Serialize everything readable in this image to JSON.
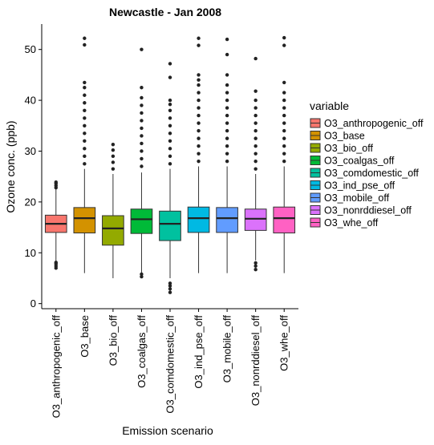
{
  "chart_data": {
    "type": "boxplot",
    "title": "Newcastle  - Jan 2008",
    "xlabel": "Emission scenario",
    "ylabel": "Ozone conc. (ppb)",
    "ylim": [
      -1,
      55
    ],
    "yticks": [
      0,
      10,
      20,
      30,
      40,
      50
    ],
    "legend": {
      "title": "variable",
      "position": "right"
    },
    "grid": false,
    "series": [
      {
        "name": "O3_anthropogenic_off",
        "color": "#F8766D",
        "stats": {
          "whislo": 8.3,
          "q1": 14.0,
          "med": 15.7,
          "q3": 17.4,
          "whishi": 22.5
        },
        "outliers": [
          7.0,
          7.4,
          7.8,
          8.1,
          22.8,
          23.2,
          23.6,
          23.9
        ]
      },
      {
        "name": "O3_base",
        "color": "#D39200",
        "stats": {
          "whislo": 6.0,
          "q1": 13.9,
          "med": 16.8,
          "q3": 18.9,
          "whishi": 26.5
        },
        "outliers": [
          27.5,
          29,
          30.5,
          32,
          33.5,
          35,
          36.5,
          38,
          39.5,
          41,
          42.5,
          43.5,
          50.9,
          52.2
        ]
      },
      {
        "name": "O3_bio_off",
        "color": "#93AA00",
        "stats": {
          "whislo": 5.0,
          "q1": 11.5,
          "med": 14.8,
          "q3": 17.3,
          "whishi": 25.5
        },
        "outliers": [
          26.5,
          27.8,
          29,
          30.2,
          31.3
        ]
      },
      {
        "name": "O3_coalgas_off",
        "color": "#00BA38",
        "stats": {
          "whislo": 6.0,
          "q1": 13.8,
          "med": 16.6,
          "q3": 18.6,
          "whishi": 25.8
        },
        "outliers": [
          5.3,
          5.8,
          27,
          28.5,
          30,
          31.5,
          33,
          34.5,
          36,
          37.5,
          39,
          40.5,
          42.5,
          50
        ]
      },
      {
        "name": "O3_comdomestic_off",
        "color": "#00C19F",
        "stats": {
          "whislo": 5.0,
          "q1": 12.4,
          "med": 15.7,
          "q3": 18.2,
          "whishi": 26.5
        },
        "outliers": [
          2.2,
          2.9,
          3.5,
          4.0,
          27.5,
          29,
          30.5,
          32,
          33.5,
          35,
          36.5,
          38,
          39.2,
          40,
          44.5,
          47.2
        ]
      },
      {
        "name": "O3_ind_pse_off",
        "color": "#00B9E3",
        "stats": {
          "whislo": 6.0,
          "q1": 14.0,
          "med": 16.8,
          "q3": 19.0,
          "whishi": 27.0
        },
        "outliers": [
          28,
          29.5,
          31,
          32.5,
          34,
          35.5,
          37,
          38.5,
          40,
          41.5,
          43,
          44,
          45,
          50.8,
          52.2
        ]
      },
      {
        "name": "O3_mobile_off",
        "color": "#619CFF",
        "stats": {
          "whislo": 6.0,
          "q1": 14.0,
          "med": 16.8,
          "q3": 18.9,
          "whishi": 27.0
        },
        "outliers": [
          28,
          29.5,
          31,
          32.5,
          34,
          35.5,
          37,
          38.5,
          40,
          41.5,
          43,
          45,
          49,
          52
        ]
      },
      {
        "name": "O3_nonrddiesel_off",
        "color": "#DB72FB",
        "stats": {
          "whislo": 8.5,
          "q1": 14.4,
          "med": 16.7,
          "q3": 18.6,
          "whishi": 25.5
        },
        "outliers": [
          6.7,
          7.4,
          8.0,
          26.5,
          28,
          29.5,
          31,
          32.5,
          34,
          35.5,
          37,
          38.5,
          40,
          41.8,
          48.2
        ]
      },
      {
        "name": "O3_whe_off",
        "color": "#FF61C3",
        "stats": {
          "whislo": 6.0,
          "q1": 13.9,
          "med": 16.8,
          "q3": 19.0,
          "whishi": 27.0
        },
        "outliers": [
          28,
          29.5,
          31,
          32.5,
          34,
          35.5,
          37,
          38.5,
          40,
          41.5,
          43.5,
          50.8,
          52.3
        ]
      }
    ]
  }
}
